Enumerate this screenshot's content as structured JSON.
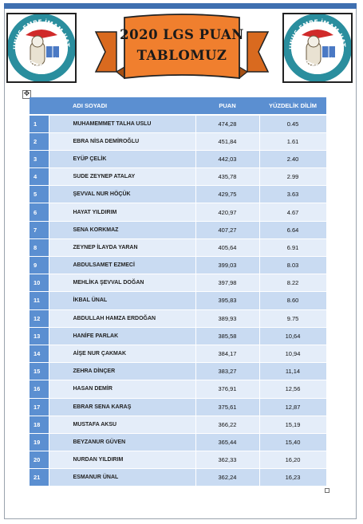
{
  "logo": {
    "text_top": "YUNUS EMRE İMAM HATİP",
    "text_bottom": "ORTAOKULU"
  },
  "banner": {
    "line1": "2020 LGS PUAN",
    "line2": "TABLOMUZ"
  },
  "table": {
    "headers": {
      "no": "",
      "name": "ADI SOYADI",
      "score": "PUAN",
      "percentile": "YÜZDELİK DİLİM"
    },
    "rows": [
      {
        "no": "1",
        "name": "MUHAMEMMET TALHA USLU",
        "score": "474,28",
        "percentile": "0.45"
      },
      {
        "no": "2",
        "name": "EBRA NİSA DEMİROĞLU",
        "score": "451,84",
        "percentile": "1.61"
      },
      {
        "no": "3",
        "name": "EYÜP ÇELİK",
        "score": "442,03",
        "percentile": "2.40"
      },
      {
        "no": "4",
        "name": "SUDE ZEYNEP ATALAY",
        "score": "435,78",
        "percentile": "2.99"
      },
      {
        "no": "5",
        "name": "ŞEVVAL NUR HÖÇÜK",
        "score": "429,75",
        "percentile": "3.63"
      },
      {
        "no": "6",
        "name": "HAYAT YILDIRIM",
        "score": "420,97",
        "percentile": "4.67"
      },
      {
        "no": "7",
        "name": "SENA KORKMAZ",
        "score": "407,27",
        "percentile": "6.64"
      },
      {
        "no": "8",
        "name": "ZEYNEP İLAYDA YARAN",
        "score": "405,64",
        "percentile": "6.91"
      },
      {
        "no": "9",
        "name": "ABDULSAMET EZMECİ",
        "score": "399,03",
        "percentile": "8.03"
      },
      {
        "no": "10",
        "name": "MEHLİKA ŞEVVAL DOĞAN",
        "score": "397,98",
        "percentile": "8.22"
      },
      {
        "no": "11",
        "name": "İKBAL ÜNAL",
        "score": "395,83",
        "percentile": "8.60"
      },
      {
        "no": "12",
        "name": "ABDULLAH HAMZA ERDOĞAN",
        "score": "389,93",
        "percentile": "9.75"
      },
      {
        "no": "13",
        "name": "HANİFE PARLAK",
        "score": "385,58",
        "percentile": "10,64"
      },
      {
        "no": "14",
        "name": "AİŞE NUR ÇAKMAK",
        "score": "384,17",
        "percentile": "10,94"
      },
      {
        "no": "15",
        "name": "ZEHRA DİNÇER",
        "score": "383,27",
        "percentile": "11,14"
      },
      {
        "no": "16",
        "name": "HASAN DEMİR",
        "score": "376,91",
        "percentile": "12,56"
      },
      {
        "no": "17",
        "name": "EBRAR SENA KARAŞ",
        "score": "375,61",
        "percentile": "12,87"
      },
      {
        "no": "18",
        "name": "MUSTAFA AKSU",
        "score": "366,22",
        "percentile": "15,19"
      },
      {
        "no": "19",
        "name": "BEYZANUR GÜVEN",
        "score": "365,44",
        "percentile": "15,40"
      },
      {
        "no": "20",
        "name": "NURDAN YILDIRIM",
        "score": "362,33",
        "percentile": "16,20"
      },
      {
        "no": "21",
        "name": "ESMANUR ÜNAL",
        "score": "362,24",
        "percentile": "16,23"
      }
    ]
  },
  "colors": {
    "header_blue": "#5b8fd1",
    "row_odd": "#c9dbf2",
    "row_even": "#e4edf9",
    "banner_orange": "#f07f2e"
  },
  "icons": {
    "move_handle": "move-cross-icon",
    "resize_handle": "resize-square-icon"
  }
}
